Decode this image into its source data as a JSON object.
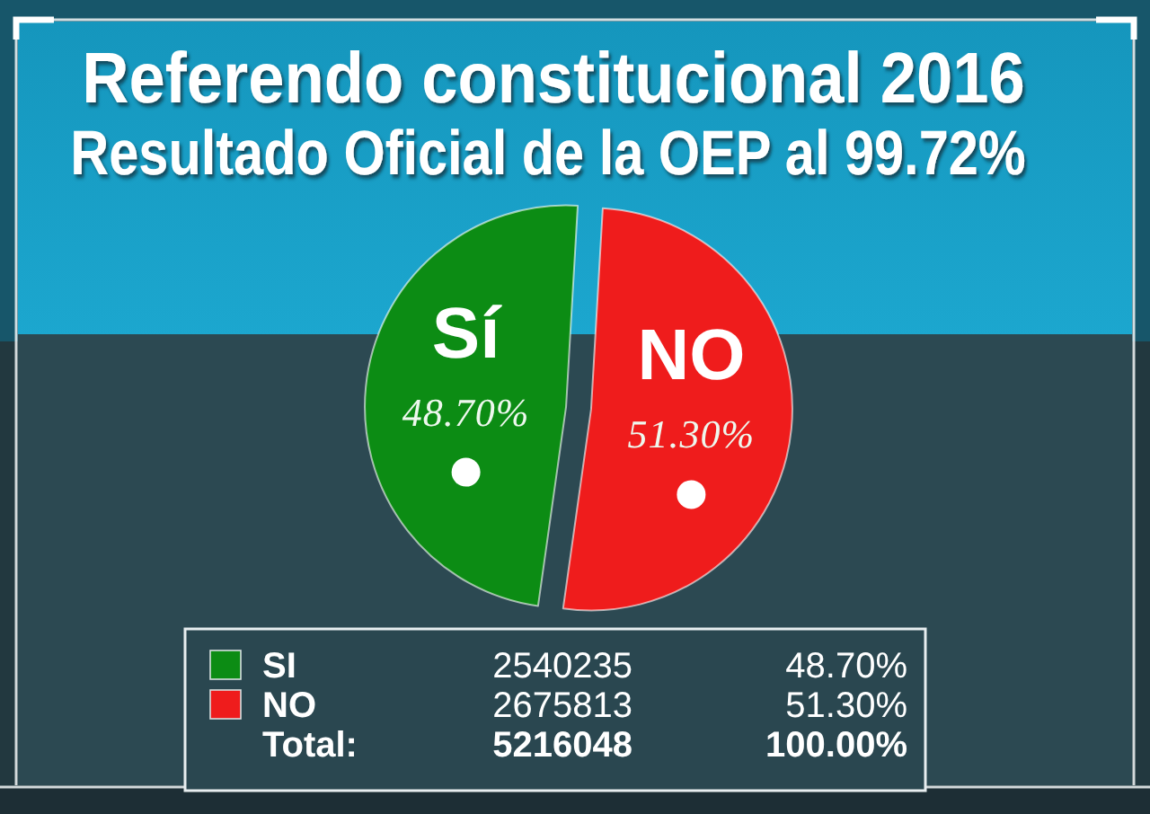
{
  "chart_data": {
    "type": "pie",
    "title": "Referendo constitucional 2016",
    "subtitle": "Resultado Oficial de la OEP al 99.72%",
    "categories": [
      "SI",
      "NO"
    ],
    "values": [
      48.7,
      51.3
    ],
    "colors": [
      "#0c8c14",
      "#ef1c1c"
    ],
    "value_labels": [
      "48.70%",
      "51.30%"
    ],
    "legend": "bottom",
    "annotations": [
      "Sí",
      "NO",
      "2540235",
      "2675813",
      "Total:",
      "5216048",
      "100.00%"
    ]
  }
}
